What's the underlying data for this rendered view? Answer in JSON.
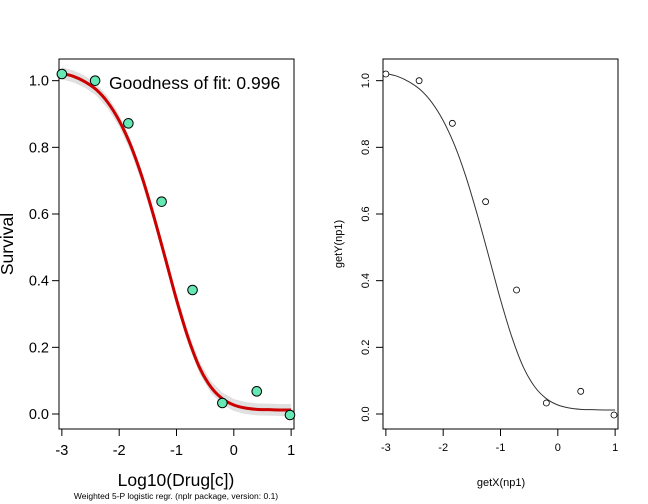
{
  "chart_data": [
    {
      "type": "scatter",
      "annotation": "Goodness of fit: 0.996",
      "xlabel": "Log10(Drug[c])",
      "ylabel": "Survival",
      "footnote": "Weighted 5-P logistic regr. (nplr package, version: 0.1)",
      "xlim": [
        -3.05,
        1.05
      ],
      "ylim": [
        -0.045,
        1.065
      ],
      "xticks": [
        -3,
        -2,
        -1,
        0,
        1
      ],
      "xtick_labels": [
        "-3",
        "-2",
        "-1",
        "0",
        "1"
      ],
      "yticks": [
        0.0,
        0.2,
        0.4,
        0.6,
        0.8,
        1.0
      ],
      "ytick_labels": [
        "0.0",
        "0.2",
        "0.4",
        "0.6",
        "0.8",
        "1.0"
      ],
      "points": {
        "x": [
          -3.0,
          -2.42,
          -1.84,
          -1.26,
          -0.72,
          -0.2,
          0.4,
          0.98
        ],
        "y": [
          1.02,
          1.0,
          0.872,
          0.637,
          0.372,
          0.033,
          0.068,
          -0.003
        ]
      },
      "fitted_curve": {
        "x": [
          -3.0,
          -2.8,
          -2.6,
          -2.4,
          -2.2,
          -2.0,
          -1.8,
          -1.6,
          -1.4,
          -1.2,
          -1.0,
          -0.8,
          -0.6,
          -0.4,
          -0.2,
          0.0,
          0.2,
          0.4,
          0.6,
          0.8,
          1.0
        ],
        "y": [
          1.022,
          1.013,
          0.997,
          0.973,
          0.935,
          0.88,
          0.806,
          0.71,
          0.595,
          0.47,
          0.343,
          0.23,
          0.14,
          0.081,
          0.046,
          0.027,
          0.018,
          0.014,
          0.013,
          0.012,
          0.012
        ]
      },
      "colors": {
        "curve": "#cc0000",
        "points_fill": "#66e8b4",
        "band": "#d8d8d8"
      },
      "grid": false
    },
    {
      "type": "scatter",
      "xlabel": "getX(np1)",
      "ylabel": "getY(np1)",
      "xlim": [
        -3.05,
        1.05
      ],
      "ylim": [
        -0.045,
        1.065
      ],
      "xticks": [
        -3,
        -2,
        -1,
        0,
        1
      ],
      "xtick_labels": [
        "-3",
        "-2",
        "-1",
        "0",
        "1"
      ],
      "yticks": [
        0.0,
        0.2,
        0.4,
        0.6,
        0.8,
        1.0
      ],
      "ytick_labels": [
        "0.0",
        "0.2",
        "0.4",
        "0.6",
        "0.8",
        "1.0"
      ],
      "points": {
        "x": [
          -3.0,
          -2.42,
          -1.84,
          -1.26,
          -0.72,
          -0.2,
          0.4,
          0.98
        ],
        "y": [
          1.02,
          1.0,
          0.872,
          0.637,
          0.372,
          0.033,
          0.068,
          -0.003
        ]
      },
      "fitted_curve": {
        "x": [
          -3.0,
          -2.8,
          -2.6,
          -2.4,
          -2.2,
          -2.0,
          -1.8,
          -1.6,
          -1.4,
          -1.2,
          -1.0,
          -0.8,
          -0.6,
          -0.4,
          -0.2,
          0.0,
          0.2,
          0.4,
          0.6,
          0.8,
          1.0
        ],
        "y": [
          1.022,
          1.013,
          0.997,
          0.973,
          0.935,
          0.88,
          0.806,
          0.71,
          0.595,
          0.47,
          0.343,
          0.23,
          0.14,
          0.081,
          0.046,
          0.027,
          0.018,
          0.014,
          0.013,
          0.012,
          0.012
        ]
      },
      "colors": {
        "curve": "#333333",
        "points_fill": "#ffffff"
      },
      "grid": false
    }
  ]
}
